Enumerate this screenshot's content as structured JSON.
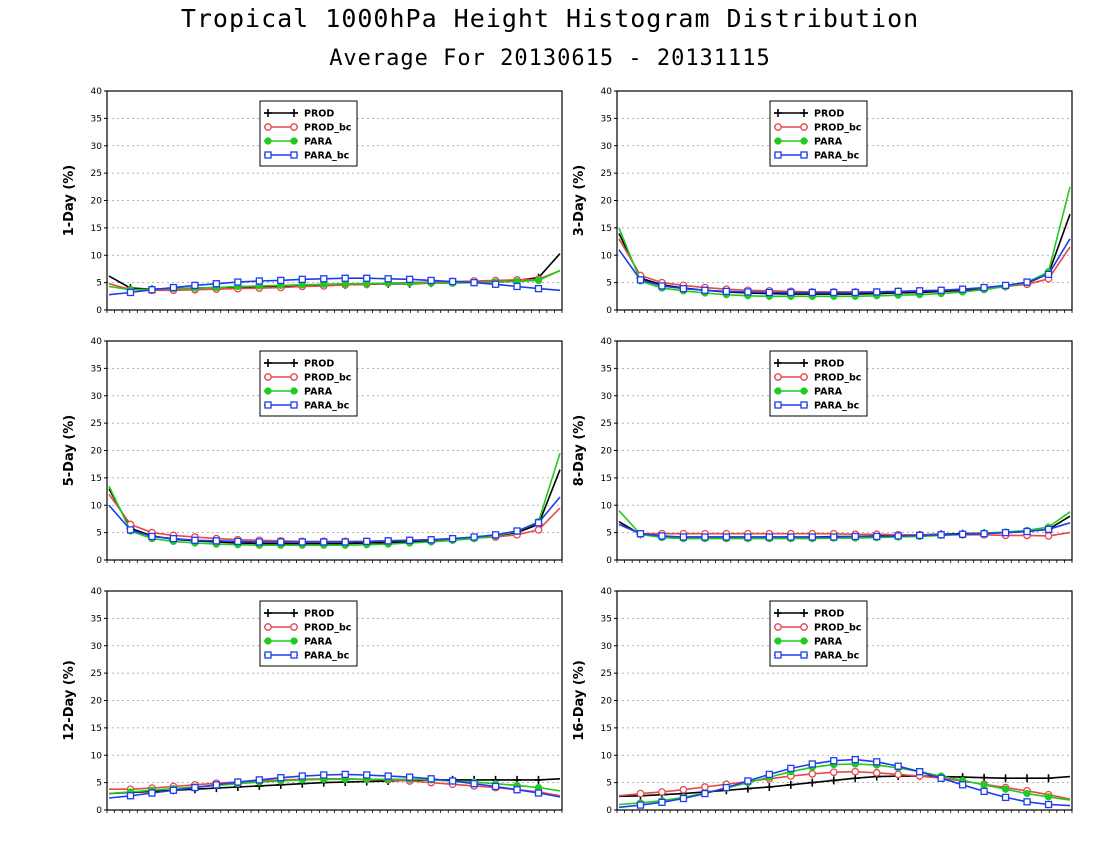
{
  "title": "Tropical 1000hPa Height Histogram Distribution",
  "subtitle": "Average For 20130615 - 20131115",
  "colors": {
    "PROD": "#000000",
    "PROD_bc": "#e8474c",
    "PARA": "#1ecb1e",
    "PARA_bc": "#1e3cf0"
  },
  "chart_data": [
    {
      "type": "line",
      "ylabel": "1-Day (%)",
      "ylim": [
        0,
        40
      ],
      "yticks": [
        0,
        5,
        10,
        15,
        20,
        25,
        30,
        35,
        40
      ],
      "grid": true,
      "legend": "top-left",
      "x": [
        1,
        2,
        3,
        4,
        5,
        6,
        7,
        8,
        9,
        10,
        11,
        12,
        13,
        14,
        15,
        16,
        17,
        18,
        19,
        20,
        21,
        22
      ],
      "series": [
        {
          "name": "PROD",
          "marker": "plus",
          "values": [
            6.2,
            4.0,
            3.8,
            3.9,
            4.0,
            4.1,
            4.2,
            4.3,
            4.3,
            4.4,
            4.5,
            4.6,
            4.7,
            4.8,
            4.8,
            4.9,
            5.0,
            5.1,
            5.2,
            5.4,
            5.9,
            10.3
          ]
        },
        {
          "name": "PROD_bc",
          "marker": "circle",
          "values": [
            4.8,
            3.7,
            3.6,
            3.6,
            3.7,
            3.8,
            3.9,
            4.0,
            4.1,
            4.3,
            4.4,
            4.6,
            4.7,
            4.9,
            5.0,
            5.1,
            5.2,
            5.3,
            5.4,
            5.5,
            5.6,
            7.2
          ]
        },
        {
          "name": "PARA",
          "marker": "dot",
          "values": [
            4.3,
            3.7,
            3.8,
            3.9,
            4.0,
            4.1,
            4.3,
            4.4,
            4.5,
            4.6,
            4.7,
            4.8,
            4.8,
            4.9,
            4.9,
            4.9,
            4.9,
            5.0,
            5.1,
            5.2,
            5.4,
            7.2
          ]
        },
        {
          "name": "PARA_bc",
          "marker": "square",
          "values": [
            2.8,
            3.2,
            3.7,
            4.1,
            4.5,
            4.8,
            5.1,
            5.3,
            5.4,
            5.6,
            5.7,
            5.8,
            5.8,
            5.7,
            5.6,
            5.4,
            5.2,
            5.0,
            4.7,
            4.3,
            3.9,
            3.6
          ]
        }
      ]
    },
    {
      "type": "line",
      "ylabel": "3-Day (%)",
      "ylim": [
        0,
        40
      ],
      "yticks": [
        0,
        5,
        10,
        15,
        20,
        25,
        30,
        35,
        40
      ],
      "grid": true,
      "legend": "top-left",
      "x": [
        1,
        2,
        3,
        4,
        5,
        6,
        7,
        8,
        9,
        10,
        11,
        12,
        13,
        14,
        15,
        16,
        17,
        18,
        19,
        20,
        21,
        22
      ],
      "series": [
        {
          "name": "PROD",
          "marker": "plus",
          "values": [
            14.0,
            5.8,
            4.6,
            4.0,
            3.6,
            3.3,
            3.1,
            3.0,
            2.9,
            2.9,
            2.9,
            2.9,
            3.0,
            3.1,
            3.2,
            3.4,
            3.6,
            3.9,
            4.3,
            4.9,
            6.6,
            17.5
          ]
        },
        {
          "name": "PROD_bc",
          "marker": "circle",
          "values": [
            13.0,
            6.3,
            5.0,
            4.5,
            4.1,
            3.8,
            3.6,
            3.5,
            3.4,
            3.3,
            3.3,
            3.3,
            3.3,
            3.4,
            3.5,
            3.6,
            3.8,
            4.0,
            4.3,
            4.7,
            5.7,
            11.5
          ]
        },
        {
          "name": "PARA",
          "marker": "dot",
          "values": [
            15.0,
            5.3,
            4.0,
            3.5,
            3.1,
            2.8,
            2.6,
            2.5,
            2.5,
            2.5,
            2.5,
            2.5,
            2.6,
            2.7,
            2.8,
            3.0,
            3.3,
            3.7,
            4.3,
            5.0,
            7.0,
            22.5
          ]
        },
        {
          "name": "PARA_bc",
          "marker": "square",
          "values": [
            11.0,
            5.5,
            4.4,
            3.9,
            3.6,
            3.4,
            3.3,
            3.2,
            3.2,
            3.2,
            3.2,
            3.2,
            3.3,
            3.4,
            3.5,
            3.6,
            3.8,
            4.1,
            4.5,
            5.1,
            6.5,
            13.0
          ]
        }
      ]
    },
    {
      "type": "line",
      "ylabel": "5-Day (%)",
      "ylim": [
        0,
        40
      ],
      "yticks": [
        0,
        5,
        10,
        15,
        20,
        25,
        30,
        35,
        40
      ],
      "grid": true,
      "legend": "top-left",
      "x": [
        1,
        2,
        3,
        4,
        5,
        6,
        7,
        8,
        9,
        10,
        11,
        12,
        13,
        14,
        15,
        16,
        17,
        18,
        19,
        20,
        21,
        22
      ],
      "series": [
        {
          "name": "PROD",
          "marker": "plus",
          "values": [
            13.0,
            5.8,
            4.4,
            3.8,
            3.5,
            3.3,
            3.1,
            3.0,
            3.0,
            3.0,
            3.0,
            3.0,
            3.1,
            3.2,
            3.3,
            3.5,
            3.7,
            4.0,
            4.4,
            5.0,
            6.5,
            16.5
          ]
        },
        {
          "name": "PROD_bc",
          "marker": "circle",
          "values": [
            12.0,
            6.5,
            5.0,
            4.5,
            4.2,
            3.9,
            3.7,
            3.6,
            3.5,
            3.4,
            3.4,
            3.4,
            3.4,
            3.5,
            3.6,
            3.7,
            3.8,
            4.0,
            4.2,
            4.6,
            5.5,
            9.5
          ]
        },
        {
          "name": "PARA",
          "marker": "dot",
          "values": [
            13.5,
            5.3,
            3.9,
            3.4,
            3.1,
            2.9,
            2.8,
            2.7,
            2.7,
            2.7,
            2.7,
            2.7,
            2.8,
            2.9,
            3.1,
            3.3,
            3.6,
            3.9,
            4.4,
            5.2,
            7.0,
            19.5
          ]
        },
        {
          "name": "PARA_bc",
          "marker": "square",
          "values": [
            10.0,
            5.5,
            4.3,
            3.9,
            3.6,
            3.5,
            3.4,
            3.3,
            3.3,
            3.3,
            3.3,
            3.3,
            3.4,
            3.5,
            3.6,
            3.7,
            3.9,
            4.2,
            4.6,
            5.3,
            6.8,
            11.5
          ]
        }
      ]
    },
    {
      "type": "line",
      "ylabel": "8-Day (%)",
      "ylim": [
        0,
        40
      ],
      "yticks": [
        0,
        5,
        10,
        15,
        20,
        25,
        30,
        35,
        40
      ],
      "grid": true,
      "legend": "top-left",
      "x": [
        1,
        2,
        3,
        4,
        5,
        6,
        7,
        8,
        9,
        10,
        11,
        12,
        13,
        14,
        15,
        16,
        17,
        18,
        19,
        20,
        21,
        22
      ],
      "series": [
        {
          "name": "PROD",
          "marker": "plus",
          "values": [
            7.0,
            4.7,
            4.3,
            4.2,
            4.2,
            4.2,
            4.2,
            4.2,
            4.2,
            4.2,
            4.3,
            4.3,
            4.4,
            4.5,
            4.6,
            4.7,
            4.8,
            4.9,
            5.0,
            5.2,
            5.6,
            8.0
          ]
        },
        {
          "name": "PROD_bc",
          "marker": "circle",
          "values": [
            6.5,
            4.8,
            4.8,
            4.8,
            4.8,
            4.8,
            4.8,
            4.8,
            4.8,
            4.8,
            4.8,
            4.7,
            4.7,
            4.6,
            4.6,
            4.6,
            4.6,
            4.6,
            4.5,
            4.5,
            4.4,
            5.0
          ]
        },
        {
          "name": "PARA",
          "marker": "dot",
          "values": [
            9.0,
            4.7,
            4.1,
            3.9,
            3.9,
            3.9,
            3.9,
            3.9,
            3.9,
            3.9,
            4.0,
            4.0,
            4.1,
            4.2,
            4.3,
            4.5,
            4.7,
            4.9,
            5.1,
            5.4,
            6.0,
            8.8
          ]
        },
        {
          "name": "PARA_bc",
          "marker": "square",
          "values": [
            6.5,
            4.8,
            4.4,
            4.2,
            4.2,
            4.2,
            4.2,
            4.2,
            4.2,
            4.2,
            4.2,
            4.3,
            4.3,
            4.4,
            4.5,
            4.6,
            4.7,
            4.8,
            5.0,
            5.2,
            5.6,
            6.8
          ]
        }
      ]
    },
    {
      "type": "line",
      "ylabel": "12-Day (%)",
      "ylim": [
        0,
        40
      ],
      "yticks": [
        0,
        5,
        10,
        15,
        20,
        25,
        30,
        35,
        40
      ],
      "grid": true,
      "legend": "top-left",
      "x": [
        1,
        2,
        3,
        4,
        5,
        6,
        7,
        8,
        9,
        10,
        11,
        12,
        13,
        14,
        15,
        16,
        17,
        18,
        19,
        20,
        21,
        22
      ],
      "series": [
        {
          "name": "PROD",
          "marker": "plus",
          "values": [
            3.0,
            3.2,
            3.4,
            3.6,
            3.8,
            4.0,
            4.2,
            4.4,
            4.6,
            4.8,
            5.0,
            5.1,
            5.2,
            5.3,
            5.4,
            5.5,
            5.5,
            5.5,
            5.5,
            5.5,
            5.5,
            5.7
          ]
        },
        {
          "name": "PROD_bc",
          "marker": "circle",
          "values": [
            3.8,
            3.8,
            4.0,
            4.3,
            4.6,
            4.9,
            5.1,
            5.3,
            5.5,
            5.6,
            5.7,
            5.7,
            5.6,
            5.5,
            5.3,
            5.0,
            4.7,
            4.4,
            4.1,
            3.7,
            3.3,
            2.6
          ]
        },
        {
          "name": "PARA",
          "marker": "dot",
          "values": [
            3.0,
            3.3,
            3.6,
            3.9,
            4.2,
            4.5,
            4.8,
            5.1,
            5.3,
            5.5,
            5.6,
            5.6,
            5.6,
            5.6,
            5.6,
            5.5,
            5.3,
            5.1,
            4.8,
            4.5,
            4.1,
            3.5
          ]
        },
        {
          "name": "PARA_bc",
          "marker": "square",
          "values": [
            2.2,
            2.6,
            3.1,
            3.6,
            4.1,
            4.6,
            5.1,
            5.5,
            5.9,
            6.2,
            6.4,
            6.5,
            6.4,
            6.2,
            6.0,
            5.7,
            5.3,
            4.8,
            4.3,
            3.7,
            3.1,
            2.4
          ]
        }
      ]
    },
    {
      "type": "line",
      "ylabel": "16-Day (%)",
      "ylim": [
        0,
        40
      ],
      "yticks": [
        0,
        5,
        10,
        15,
        20,
        25,
        30,
        35,
        40
      ],
      "grid": true,
      "legend": "top-left",
      "x": [
        1,
        2,
        3,
        4,
        5,
        6,
        7,
        8,
        9,
        10,
        11,
        12,
        13,
        14,
        15,
        16,
        17,
        18,
        19,
        20,
        21,
        22
      ],
      "series": [
        {
          "name": "PROD",
          "marker": "plus",
          "values": [
            2.5,
            2.6,
            2.8,
            3.0,
            3.3,
            3.6,
            3.9,
            4.2,
            4.6,
            5.0,
            5.4,
            5.8,
            6.1,
            6.2,
            6.2,
            6.1,
            6.0,
            5.9,
            5.8,
            5.8,
            5.8,
            6.1
          ]
        },
        {
          "name": "PROD_bc",
          "marker": "circle",
          "values": [
            2.6,
            3.0,
            3.3,
            3.7,
            4.2,
            4.7,
            5.2,
            5.7,
            6.2,
            6.6,
            6.9,
            7.0,
            6.8,
            6.5,
            6.2,
            5.8,
            5.3,
            4.7,
            4.1,
            3.5,
            2.8,
            2.0
          ]
        },
        {
          "name": "PARA",
          "marker": "dot",
          "values": [
            1.0,
            1.3,
            1.7,
            2.3,
            3.1,
            4.0,
            5.0,
            6.0,
            7.0,
            7.8,
            8.3,
            8.4,
            8.2,
            7.7,
            7.0,
            6.2,
            5.4,
            4.6,
            3.8,
            3.0,
            2.4,
            1.8
          ]
        },
        {
          "name": "PARA_bc",
          "marker": "square",
          "values": [
            0.5,
            0.9,
            1.4,
            2.1,
            3.0,
            4.1,
            5.3,
            6.5,
            7.6,
            8.4,
            9.0,
            9.2,
            8.8,
            8.0,
            7.0,
            5.8,
            4.6,
            3.4,
            2.3,
            1.5,
            1.0,
            0.8
          ]
        }
      ]
    }
  ]
}
